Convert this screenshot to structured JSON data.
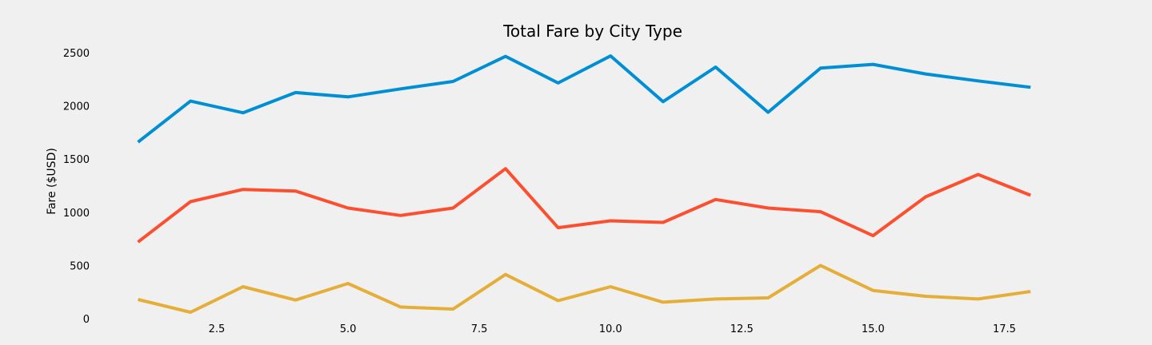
{
  "chart_data": {
    "type": "line",
    "title": "Total Fare by City Type",
    "xlabel": "",
    "ylabel": "Fare ($USD)",
    "xlim": [
      0.2,
      19.2
    ],
    "ylim": [
      -60,
      2620
    ],
    "x_ticks": [
      2.5,
      5.0,
      7.5,
      10.0,
      12.5,
      15.0,
      17.5
    ],
    "x_tick_labels": [
      "2.5",
      "5.0",
      "7.5",
      "10.0",
      "12.5",
      "15.0",
      "17.5"
    ],
    "y_ticks": [
      0,
      500,
      1000,
      1500,
      2000,
      2500
    ],
    "y_tick_labels": [
      "0",
      "500",
      "1000",
      "1500",
      "2000",
      "2500"
    ],
    "grid": false,
    "x": [
      1,
      2,
      3,
      4,
      5,
      6,
      7,
      8,
      9,
      10,
      11,
      12,
      13,
      14,
      15,
      16,
      17,
      18
    ],
    "series": [
      {
        "color": "#008fd5",
        "values": [
          1660,
          2045,
          1935,
          2125,
          2085,
          2160,
          2230,
          2465,
          2215,
          2470,
          2040,
          2365,
          1940,
          2355,
          2390,
          2300,
          2235,
          2175
        ]
      },
      {
        "color": "#fc4f30",
        "values": [
          720,
          1100,
          1215,
          1200,
          1040,
          970,
          1040,
          1410,
          855,
          920,
          905,
          1120,
          1040,
          1005,
          780,
          1145,
          1355,
          1160
        ]
      },
      {
        "color": "#e5ae38",
        "values": [
          180,
          60,
          300,
          175,
          330,
          110,
          90,
          415,
          170,
          300,
          155,
          185,
          195,
          500,
          265,
          210,
          185,
          255
        ]
      }
    ]
  }
}
